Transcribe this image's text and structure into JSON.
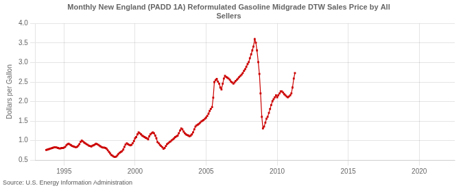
{
  "chart_data": {
    "type": "line",
    "title": "Monthly New England (PADD 1A) Reformulated Gasoline Midgrade DTW Sales Price by All\nSellers",
    "ylabel": "Dollars per Gallon",
    "source": "Source: U.S. Energy Information Administration",
    "color": "#cc0000",
    "marker": "square",
    "line_style": "solid",
    "grid": true,
    "xlim": [
      1993.0,
      2022.5
    ],
    "ylim": [
      0.5,
      4.0
    ],
    "xticks": [
      1995,
      2000,
      2005,
      2010,
      2015,
      2020
    ],
    "yticks": [
      0.5,
      {
        "value": 1.0,
        "label": "1.0"
      },
      1.5,
      {
        "value": 2.0,
        "label": "2.0"
      },
      2.5,
      {
        "value": 3.0,
        "label": "3.0"
      },
      3.5,
      {
        "value": 4.0,
        "label": "4.0"
      }
    ],
    "x": [
      1993.75,
      1993.83,
      1993.92,
      1994.0,
      1994.08,
      1994.17,
      1994.25,
      1994.33,
      1994.42,
      1994.5,
      1994.58,
      1994.67,
      1994.75,
      1994.83,
      1994.92,
      1995.0,
      1995.08,
      1995.17,
      1995.25,
      1995.33,
      1995.42,
      1995.5,
      1995.58,
      1995.67,
      1995.75,
      1995.83,
      1995.92,
      1996.0,
      1996.08,
      1996.17,
      1996.25,
      1996.33,
      1996.42,
      1996.5,
      1996.58,
      1996.67,
      1996.75,
      1996.83,
      1996.92,
      1997.0,
      1997.08,
      1997.17,
      1997.25,
      1997.33,
      1997.42,
      1997.5,
      1997.58,
      1997.67,
      1997.75,
      1997.83,
      1997.92,
      1998.0,
      1998.08,
      1998.17,
      1998.25,
      1998.33,
      1998.42,
      1998.5,
      1998.58,
      1998.67,
      1998.75,
      1998.83,
      1998.92,
      1999.0,
      1999.08,
      1999.17,
      1999.25,
      1999.33,
      1999.42,
      1999.5,
      1999.58,
      1999.67,
      1999.75,
      1999.83,
      1999.92,
      2000.0,
      2000.08,
      2000.17,
      2000.25,
      2000.33,
      2000.42,
      2000.5,
      2000.58,
      2000.67,
      2000.75,
      2000.83,
      2000.92,
      2001.0,
      2001.08,
      2001.17,
      2001.25,
      2001.33,
      2001.42,
      2001.5,
      2001.58,
      2001.67,
      2001.75,
      2001.83,
      2001.92,
      2002.0,
      2002.08,
      2002.17,
      2002.25,
      2002.33,
      2002.42,
      2002.5,
      2002.58,
      2002.67,
      2002.75,
      2002.83,
      2002.92,
      2003.0,
      2003.08,
      2003.17,
      2003.25,
      2003.33,
      2003.42,
      2003.5,
      2003.58,
      2003.67,
      2003.75,
      2003.83,
      2003.92,
      2004.0,
      2004.08,
      2004.17,
      2004.25,
      2004.33,
      2004.42,
      2004.5,
      2004.58,
      2004.67,
      2004.75,
      2004.83,
      2004.92,
      2005.0,
      2005.08,
      2005.17,
      2005.25,
      2005.33,
      2005.42,
      2005.5,
      2005.58,
      2005.67,
      2005.75,
      2005.83,
      2005.92,
      2006.0,
      2006.08,
      2006.17,
      2006.25,
      2006.33,
      2006.42,
      2006.5,
      2006.58,
      2006.67,
      2006.75,
      2006.83,
      2006.92,
      2007.0,
      2007.08,
      2007.17,
      2007.25,
      2007.33,
      2007.42,
      2007.5,
      2007.58,
      2007.67,
      2007.75,
      2007.83,
      2007.92,
      2008.0,
      2008.08,
      2008.17,
      2008.25,
      2008.33,
      2008.42,
      2008.5,
      2008.58,
      2008.67,
      2008.75,
      2008.83,
      2008.92,
      2009.0,
      2009.08,
      2009.17,
      2009.25,
      2009.33,
      2009.42,
      2009.5,
      2009.58,
      2009.67,
      2009.75,
      2009.83,
      2009.92,
      2010.0,
      2010.08,
      2010.17,
      2010.25,
      2010.33,
      2010.42,
      2010.5,
      2010.58,
      2010.67,
      2010.75,
      2010.83,
      2010.92,
      2011.0,
      2011.08,
      2011.17,
      2011.25
    ],
    "values": [
      0.76,
      0.77,
      0.78,
      0.79,
      0.8,
      0.81,
      0.82,
      0.83,
      0.83,
      0.82,
      0.81,
      0.8,
      0.8,
      0.81,
      0.81,
      0.82,
      0.84,
      0.88,
      0.91,
      0.92,
      0.9,
      0.88,
      0.86,
      0.85,
      0.84,
      0.83,
      0.84,
      0.87,
      0.91,
      0.97,
      1.0,
      0.98,
      0.95,
      0.93,
      0.91,
      0.89,
      0.87,
      0.86,
      0.85,
      0.87,
      0.88,
      0.9,
      0.92,
      0.91,
      0.89,
      0.87,
      0.85,
      0.83,
      0.82,
      0.82,
      0.81,
      0.79,
      0.75,
      0.71,
      0.67,
      0.63,
      0.61,
      0.59,
      0.58,
      0.59,
      0.62,
      0.66,
      0.69,
      0.71,
      0.73,
      0.77,
      0.84,
      0.9,
      0.93,
      0.91,
      0.89,
      0.88,
      0.89,
      0.93,
      0.99,
      1.06,
      1.09,
      1.16,
      1.21,
      1.19,
      1.16,
      1.13,
      1.11,
      1.09,
      1.07,
      1.06,
      1.03,
      1.11,
      1.16,
      1.19,
      1.21,
      1.19,
      1.13,
      1.06,
      0.96,
      0.93,
      0.89,
      0.86,
      0.83,
      0.79,
      0.81,
      0.86,
      0.91,
      0.93,
      0.96,
      0.98,
      1.01,
      1.03,
      1.06,
      1.09,
      1.11,
      1.13,
      1.19,
      1.26,
      1.31,
      1.29,
      1.23,
      1.19,
      1.16,
      1.14,
      1.13,
      1.11,
      1.13,
      1.16,
      1.21,
      1.29,
      1.36,
      1.39,
      1.41,
      1.43,
      1.46,
      1.49,
      1.51,
      1.53,
      1.56,
      1.59,
      1.63,
      1.69,
      1.76,
      1.81,
      1.86,
      2.1,
      2.5,
      2.55,
      2.58,
      2.51,
      2.46,
      2.36,
      2.31,
      2.46,
      2.59,
      2.66,
      2.63,
      2.61,
      2.59,
      2.56,
      2.51,
      2.49,
      2.46,
      2.49,
      2.53,
      2.56,
      2.59,
      2.63,
      2.66,
      2.69,
      2.73,
      2.79,
      2.83,
      2.89,
      2.96,
      3.01,
      3.11,
      3.21,
      3.31,
      3.41,
      3.6,
      3.51,
      3.31,
      3.01,
      2.71,
      2.21,
      1.61,
      1.31,
      1.36,
      1.46,
      1.56,
      1.61,
      1.71,
      1.81,
      1.91,
      2.01,
      2.06,
      2.11,
      2.16,
      2.11,
      2.16,
      2.21,
      2.26,
      2.26,
      2.23,
      2.19,
      2.16,
      2.13,
      2.11,
      2.13,
      2.16,
      2.21,
      2.36,
      2.59,
      2.73
    ]
  }
}
